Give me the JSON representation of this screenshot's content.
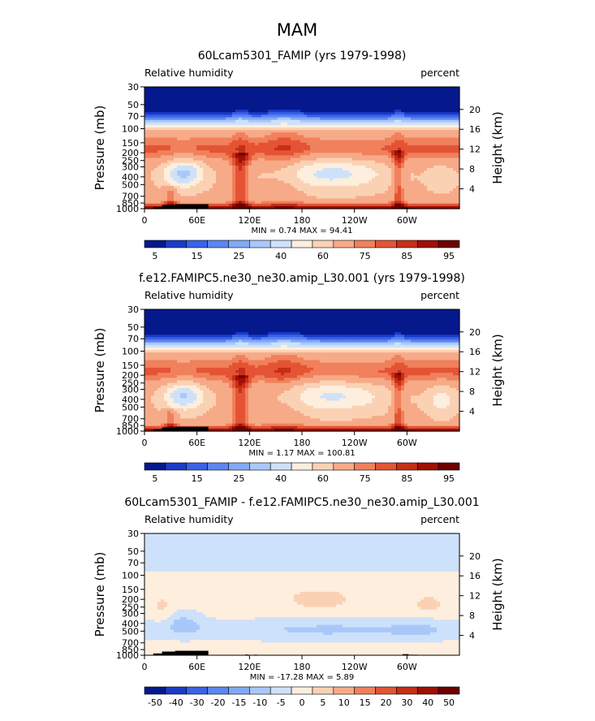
{
  "figure_title": "MAM",
  "colors": {
    "abs_scale": [
      "#05198c",
      "#1a3bc7",
      "#3a62e8",
      "#5c86f2",
      "#82a8f7",
      "#a9c8fa",
      "#cde1fa",
      "#fdeedd",
      "#fbd1b4",
      "#f7aa87",
      "#f1805c",
      "#e45434",
      "#c72e16",
      "#a00f04",
      "#6e0000"
    ],
    "diff_scale": [
      "#05198c",
      "#1a3bc7",
      "#3a62e8",
      "#5c86f2",
      "#82a8f7",
      "#a9c8fa",
      "#cde1fa",
      "#fdeedd",
      "#fbd1b4",
      "#f7aa87",
      "#f1805c",
      "#e45434",
      "#c72e16",
      "#a00f04",
      "#6e0000"
    ],
    "topography": "#000000"
  },
  "chart_data": [
    {
      "type": "heatmap",
      "title": "60Lcam5301_FAMIP (yrs 1979-1998)",
      "left_label": "Relative humidity",
      "right_label": "percent",
      "ylabel": "Pressure (mb)",
      "ylabel_right": "Height (km)",
      "xticks": [
        "0",
        "60E",
        "120E",
        "180",
        "120W",
        "60W"
      ],
      "xtick_lon": [
        0,
        60,
        120,
        180,
        240,
        300
      ],
      "yticks": [
        "30",
        "50",
        "70",
        "100",
        "150",
        "200",
        "250",
        "300",
        "400",
        "500",
        "700",
        "850",
        "1000"
      ],
      "ytick_p": [
        30,
        50,
        70,
        100,
        150,
        200,
        250,
        300,
        400,
        500,
        700,
        850,
        1000
      ],
      "height_ticks": [
        "20",
        "16",
        "12",
        "8",
        "4"
      ],
      "height_km": [
        20,
        16,
        12,
        8,
        4
      ],
      "ylim": [
        30,
        1000
      ],
      "xlim": [
        0,
        360
      ],
      "stats": "MIN =    0.74   MAX =   94.41",
      "levels": [
        5,
        10,
        15,
        20,
        25,
        30,
        40,
        50,
        60,
        70,
        75,
        80,
        85,
        90,
        95
      ],
      "colorbar_labels": [
        "5",
        "15",
        "25",
        "40",
        "60",
        "75",
        "85",
        "95"
      ],
      "colorbar_label_index": [
        0,
        2,
        4,
        6,
        8,
        10,
        12,
        14
      ],
      "min": 0.74,
      "max": 94.41
    },
    {
      "type": "heatmap",
      "title": "f.e12.FAMIPC5.ne30_ne30.amip_L30.001 (yrs 1979-1998)",
      "left_label": "Relative humidity",
      "right_label": "percent",
      "ylabel": "Pressure (mb)",
      "ylabel_right": "Height (km)",
      "xticks": [
        "0",
        "60E",
        "120E",
        "180",
        "120W",
        "60W"
      ],
      "xtick_lon": [
        0,
        60,
        120,
        180,
        240,
        300
      ],
      "yticks": [
        "30",
        "50",
        "70",
        "100",
        "150",
        "200",
        "250",
        "300",
        "400",
        "500",
        "700",
        "850",
        "1000"
      ],
      "ytick_p": [
        30,
        50,
        70,
        100,
        150,
        200,
        250,
        300,
        400,
        500,
        700,
        850,
        1000
      ],
      "height_ticks": [
        "20",
        "16",
        "12",
        "8",
        "4"
      ],
      "height_km": [
        20,
        16,
        12,
        8,
        4
      ],
      "ylim": [
        30,
        1000
      ],
      "xlim": [
        0,
        360
      ],
      "stats": "MIN =    1.17   MAX =  100.81",
      "levels": [
        5,
        10,
        15,
        20,
        25,
        30,
        40,
        50,
        60,
        70,
        75,
        80,
        85,
        90,
        95
      ],
      "colorbar_labels": [
        "5",
        "15",
        "25",
        "40",
        "60",
        "75",
        "85",
        "95"
      ],
      "colorbar_label_index": [
        0,
        2,
        4,
        6,
        8,
        10,
        12,
        14
      ],
      "min": 1.17,
      "max": 100.81
    },
    {
      "type": "heatmap",
      "title": "60Lcam5301_FAMIP - f.e12.FAMIPC5.ne30_ne30.amip_L30.001",
      "left_label": "Relative humidity",
      "right_label": "percent",
      "ylabel": "Pressure (mb)",
      "ylabel_right": "Height (km)",
      "xticks": [
        "0",
        "60E",
        "120E",
        "180",
        "120W",
        "60W"
      ],
      "xtick_lon": [
        0,
        60,
        120,
        180,
        240,
        300
      ],
      "yticks": [
        "30",
        "50",
        "70",
        "100",
        "150",
        "200",
        "250",
        "300",
        "400",
        "500",
        "700",
        "850",
        "1000"
      ],
      "ytick_p": [
        30,
        50,
        70,
        100,
        150,
        200,
        250,
        300,
        400,
        500,
        700,
        850,
        1000
      ],
      "height_ticks": [
        "20",
        "16",
        "12",
        "8",
        "4"
      ],
      "height_km": [
        20,
        16,
        12,
        8,
        4
      ],
      "ylim": [
        30,
        1000
      ],
      "xlim": [
        0,
        360
      ],
      "stats": "MIN =  -17.28   MAX =    5.89",
      "levels": [
        -50,
        -40,
        -30,
        -20,
        -15,
        -10,
        -5,
        0,
        5,
        10,
        15,
        20,
        30,
        40,
        50
      ],
      "colorbar_labels": [
        "-50",
        "-40",
        "-30",
        "-20",
        "-15",
        "-10",
        "-5",
        "0",
        "5",
        "10",
        "15",
        "20",
        "30",
        "40",
        "50"
      ],
      "colorbar_label_index": [
        0,
        1,
        2,
        3,
        4,
        5,
        6,
        7,
        8,
        9,
        10,
        11,
        12,
        13,
        14
      ],
      "min": -17.28,
      "max": 5.89
    }
  ]
}
